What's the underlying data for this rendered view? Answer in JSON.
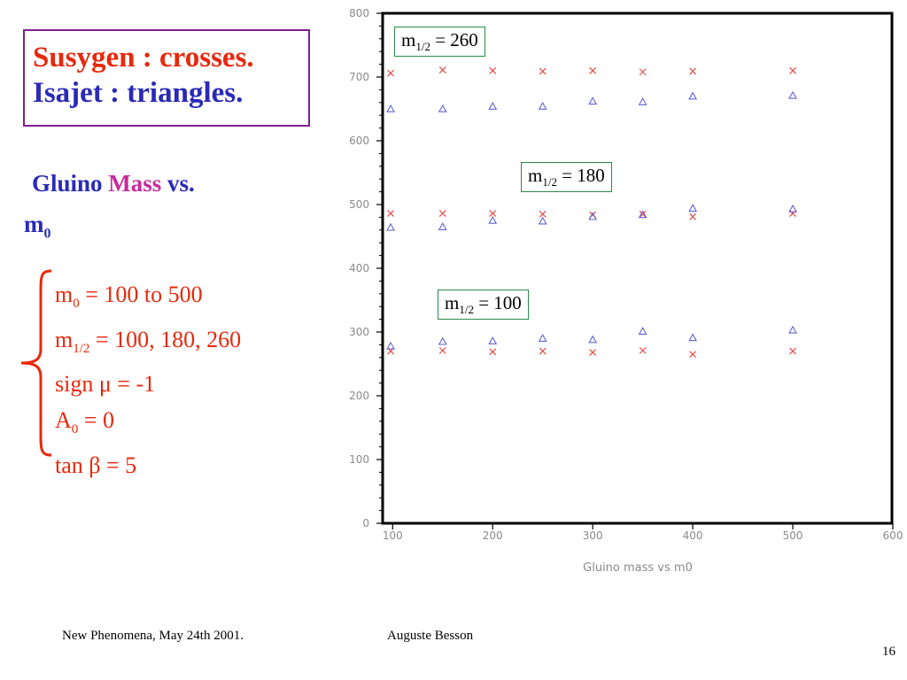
{
  "legend": {
    "line1": "Susygen : crosses.",
    "line2": "Isajet : triangles."
  },
  "subtitle": {
    "part1": "Gluino ",
    "part2": "Mass",
    "part3": " vs.",
    "line2_base": "m",
    "line2_sub": "0"
  },
  "params": [
    {
      "pre": "m",
      "sub": "0",
      "post": " = 100 to 500"
    },
    {
      "pre": "m",
      "sub": "1/2",
      "post": " = 100, 180, 260"
    },
    {
      "pre": "sign μ = -1",
      "sub": "",
      "post": ""
    },
    {
      "pre": "A",
      "sub": "0",
      "post": " = 0"
    },
    {
      "pre": "tan β = 5",
      "sub": "",
      "post": ""
    }
  ],
  "footer": {
    "left": "New Phenomena, May 24th 2001.",
    "center": "Auguste Besson",
    "page": "16"
  },
  "annotations": [
    {
      "pre": "m",
      "sub": "1/2",
      "post": " = 260"
    },
    {
      "pre": "m",
      "sub": "1/2",
      "post": " = 180"
    },
    {
      "pre": "m",
      "sub": "1/2",
      "post": " = 100"
    }
  ],
  "colors": {
    "crosses": "#e34a4a",
    "triangles": "#6262d6",
    "frame": "#000000",
    "axis_text": "#8a8a8a"
  },
  "chart_data": {
    "type": "scatter",
    "xlabel": "Gluino mass vs m0",
    "ylabel": "",
    "xlim": [
      90,
      600
    ],
    "ylim": [
      0,
      800
    ],
    "xticks": [
      100,
      200,
      300,
      400,
      500,
      600
    ],
    "yticks": [
      0,
      100,
      200,
      300,
      400,
      500,
      600,
      700,
      800
    ],
    "series": [
      {
        "name": "Susygen",
        "marker": "cross",
        "points": [
          [
            98,
            706
          ],
          [
            150,
            711
          ],
          [
            200,
            710
          ],
          [
            250,
            709
          ],
          [
            300,
            710
          ],
          [
            350,
            708
          ],
          [
            400,
            709
          ],
          [
            500,
            710
          ],
          [
            98,
            486
          ],
          [
            150,
            486
          ],
          [
            200,
            486
          ],
          [
            250,
            485
          ],
          [
            300,
            484
          ],
          [
            350,
            485
          ],
          [
            400,
            481
          ],
          [
            500,
            486
          ],
          [
            98,
            270
          ],
          [
            150,
            271
          ],
          [
            200,
            269
          ],
          [
            250,
            270
          ],
          [
            300,
            268
          ],
          [
            350,
            271
          ],
          [
            400,
            265
          ],
          [
            500,
            270
          ]
        ]
      },
      {
        "name": "Isajet",
        "marker": "triangle",
        "points": [
          [
            98,
            650
          ],
          [
            150,
            650
          ],
          [
            200,
            654
          ],
          [
            250,
            654
          ],
          [
            300,
            662
          ],
          [
            350,
            661
          ],
          [
            400,
            670
          ],
          [
            500,
            671
          ],
          [
            98,
            464
          ],
          [
            150,
            465
          ],
          [
            200,
            475
          ],
          [
            250,
            474
          ],
          [
            300,
            481
          ],
          [
            350,
            484
          ],
          [
            400,
            494
          ],
          [
            500,
            493
          ],
          [
            98,
            278
          ],
          [
            150,
            285
          ],
          [
            200,
            286
          ],
          [
            250,
            290
          ],
          [
            300,
            288
          ],
          [
            350,
            301
          ],
          [
            400,
            291
          ],
          [
            500,
            303
          ]
        ]
      }
    ]
  }
}
